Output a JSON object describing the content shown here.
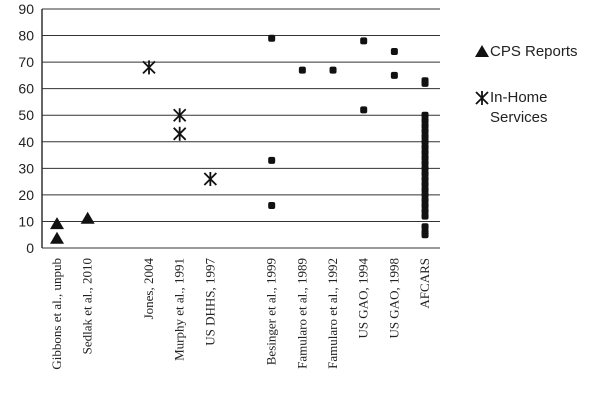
{
  "chart_data": {
    "type": "scatter",
    "categories": [
      "Gibbons et al., unpub",
      "Sedlak et al., 2010",
      null,
      "Jones, 2004",
      "Murphy et al., 1991",
      "US DHHS, 1997",
      null,
      "Besinger et al., 1999",
      "Famularo et al., 1989",
      "Famularo et al., 1992",
      "US GAO, 1994",
      "US GAO, 1998",
      "AFCARS"
    ],
    "series": [
      {
        "name": "CPS Reports",
        "marker": "triangle",
        "color": "#111",
        "values": [
          [
            9,
            3.5
          ],
          [
            11
          ],
          null,
          null,
          null,
          null,
          null,
          null,
          null,
          null,
          null,
          null,
          null
        ]
      },
      {
        "name": "In-Home Services",
        "marker": "asterisk",
        "color": "#111",
        "values": [
          null,
          null,
          null,
          [
            68
          ],
          [
            50,
            43
          ],
          [
            26
          ],
          null,
          null,
          null,
          null,
          null,
          null,
          null
        ]
      },
      {
        "marker": "circle",
        "color": "#111",
        "values": [
          null,
          null,
          null,
          null,
          null,
          null,
          null,
          [
            79,
            33,
            16
          ],
          [
            67
          ],
          [
            67
          ],
          [
            78,
            52
          ],
          [
            74,
            65
          ],
          [
            63,
            62,
            50,
            48,
            46,
            44,
            42,
            40,
            38,
            36,
            34,
            32,
            30,
            28,
            26,
            24,
            22,
            20,
            18,
            16,
            14,
            12,
            8,
            6,
            5
          ]
        ]
      }
    ],
    "ylim": [
      0,
      90
    ],
    "yticks": [
      0,
      10,
      20,
      30,
      40,
      50,
      60,
      70,
      80,
      90
    ],
    "grid": true
  }
}
